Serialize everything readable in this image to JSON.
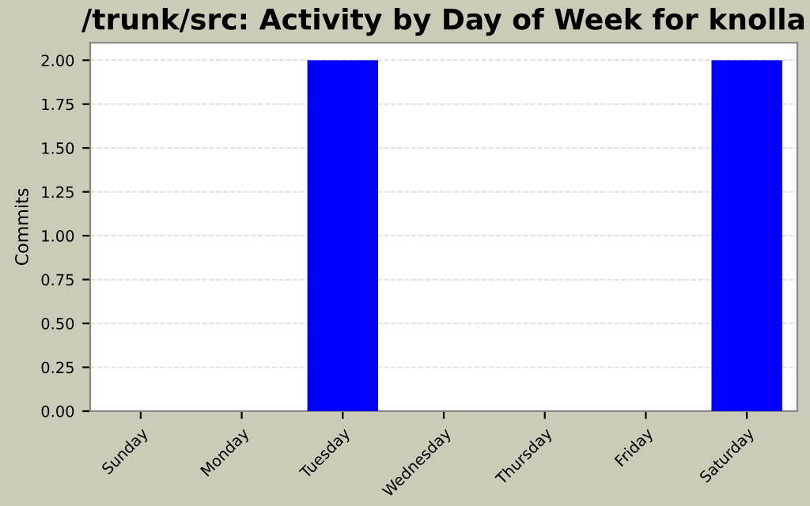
{
  "chart_data": {
    "type": "bar",
    "title": "/trunk/src: Activity by Day of Week for knolla",
    "ylabel": "Commits",
    "categories": [
      "Sunday",
      "Monday",
      "Tuesday",
      "Wednesday",
      "Thursday",
      "Friday",
      "Saturday"
    ],
    "values": [
      0,
      0,
      2,
      0,
      0,
      0,
      2
    ],
    "color": "#0000ff",
    "ylim": [
      0,
      2.1
    ],
    "yticks": [
      {
        "value": 0,
        "label": "0.00"
      },
      {
        "value": 0.25,
        "label": "0.25"
      },
      {
        "value": 0.5,
        "label": "0.50"
      },
      {
        "value": 0.75,
        "label": "0.75"
      },
      {
        "value": 1,
        "label": "1.00"
      },
      {
        "value": 1.25,
        "label": "1.25"
      },
      {
        "value": 1.5,
        "label": "1.50"
      },
      {
        "value": 1.75,
        "label": "1.75"
      },
      {
        "value": 2,
        "label": "2.00"
      }
    ],
    "grid": "y"
  }
}
